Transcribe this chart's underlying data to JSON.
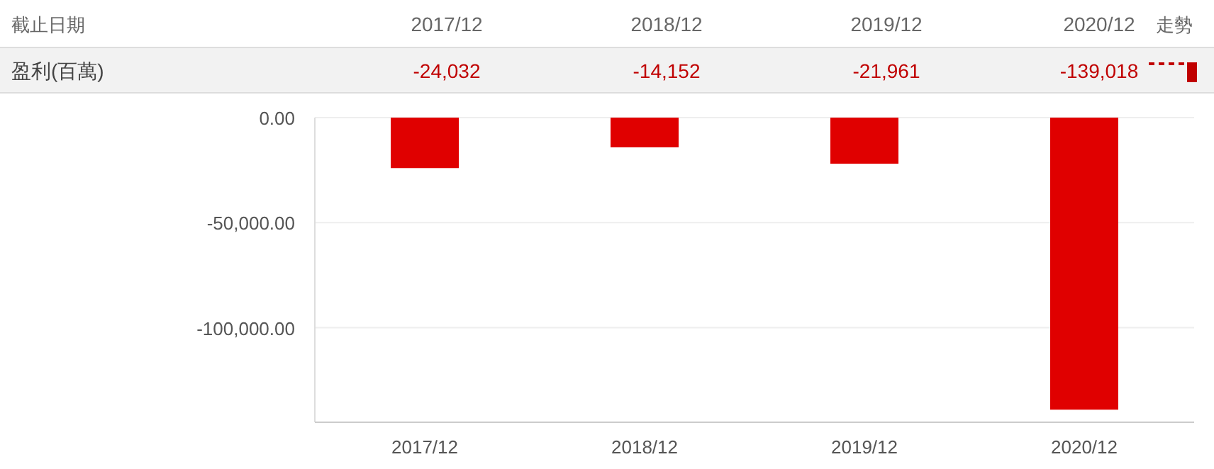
{
  "chart_data": {
    "type": "bar",
    "categories": [
      "2017/12",
      "2018/12",
      "2019/12",
      "2020/12"
    ],
    "values": [
      -24032,
      -14152,
      -21961,
      -139018
    ],
    "value_labels": [
      "-24,032",
      "-14,152",
      "-21,961",
      "-139,018"
    ],
    "color": "#e00000",
    "ylim": [
      -145000,
      0
    ],
    "yticks": [
      {
        "value": 0,
        "label": "0.00"
      },
      {
        "value": -50000,
        "label": "-50,000.00"
      },
      {
        "value": -100000,
        "label": "-100,000.00"
      }
    ],
    "grid": "y",
    "annotations": [
      "截止日期",
      "盈利(百萬)",
      "走勢"
    ]
  }
}
